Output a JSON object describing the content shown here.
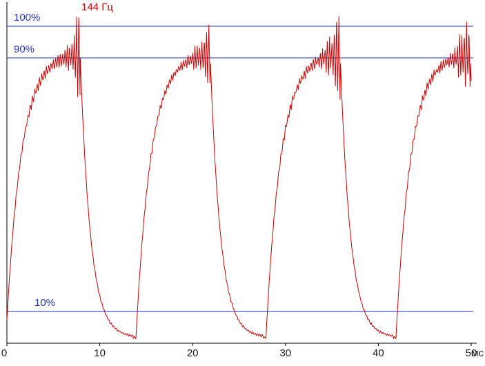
{
  "chart_data": {
    "type": "line",
    "title": "144 Гц",
    "xlabel": "мс",
    "ylabel": "",
    "x_range": [
      0,
      50
    ],
    "x_ticks": [
      0,
      10,
      20,
      30,
      40,
      50
    ],
    "ylim": [
      0,
      108
    ],
    "grid": false,
    "legend": "none",
    "series_color": "#cc0000",
    "axis_color": "#000000",
    "tick_label_color": "#1a1a1a",
    "reference_lines": [
      {
        "label": "100%",
        "value": 100,
        "color": "#2233bb"
      },
      {
        "label": "90%",
        "value": 90,
        "color": "#2233bb"
      },
      {
        "label": "10%",
        "value": 10,
        "color": "#2233bb"
      }
    ],
    "waveform": {
      "description": "Pulsating backlight brightness trace: exponential rise to ~92%, high-frequency spike burst at each crest reaching ~107% and dipping to ~76%, then exponential fall to ~2% baseline; four pulses across 0-50 ms",
      "period_ms": 14.0,
      "phase_offset_ms": 0.4,
      "rise_start_ms": 0.3,
      "rise_tau_ms": 1.6,
      "fall_start_ms": 8.3,
      "fall_tau_ms": 1.1,
      "low_pct": 1.8,
      "peak_pct": 91.6,
      "ripple_base_pct": 1.6,
      "ripple_low_pct": 0.35,
      "spike_start_ms": 5.3,
      "spike_amp_pct": 11.5,
      "carrier_freq_per_ms": 4.0,
      "sample_step_ms": 0.025
    }
  }
}
